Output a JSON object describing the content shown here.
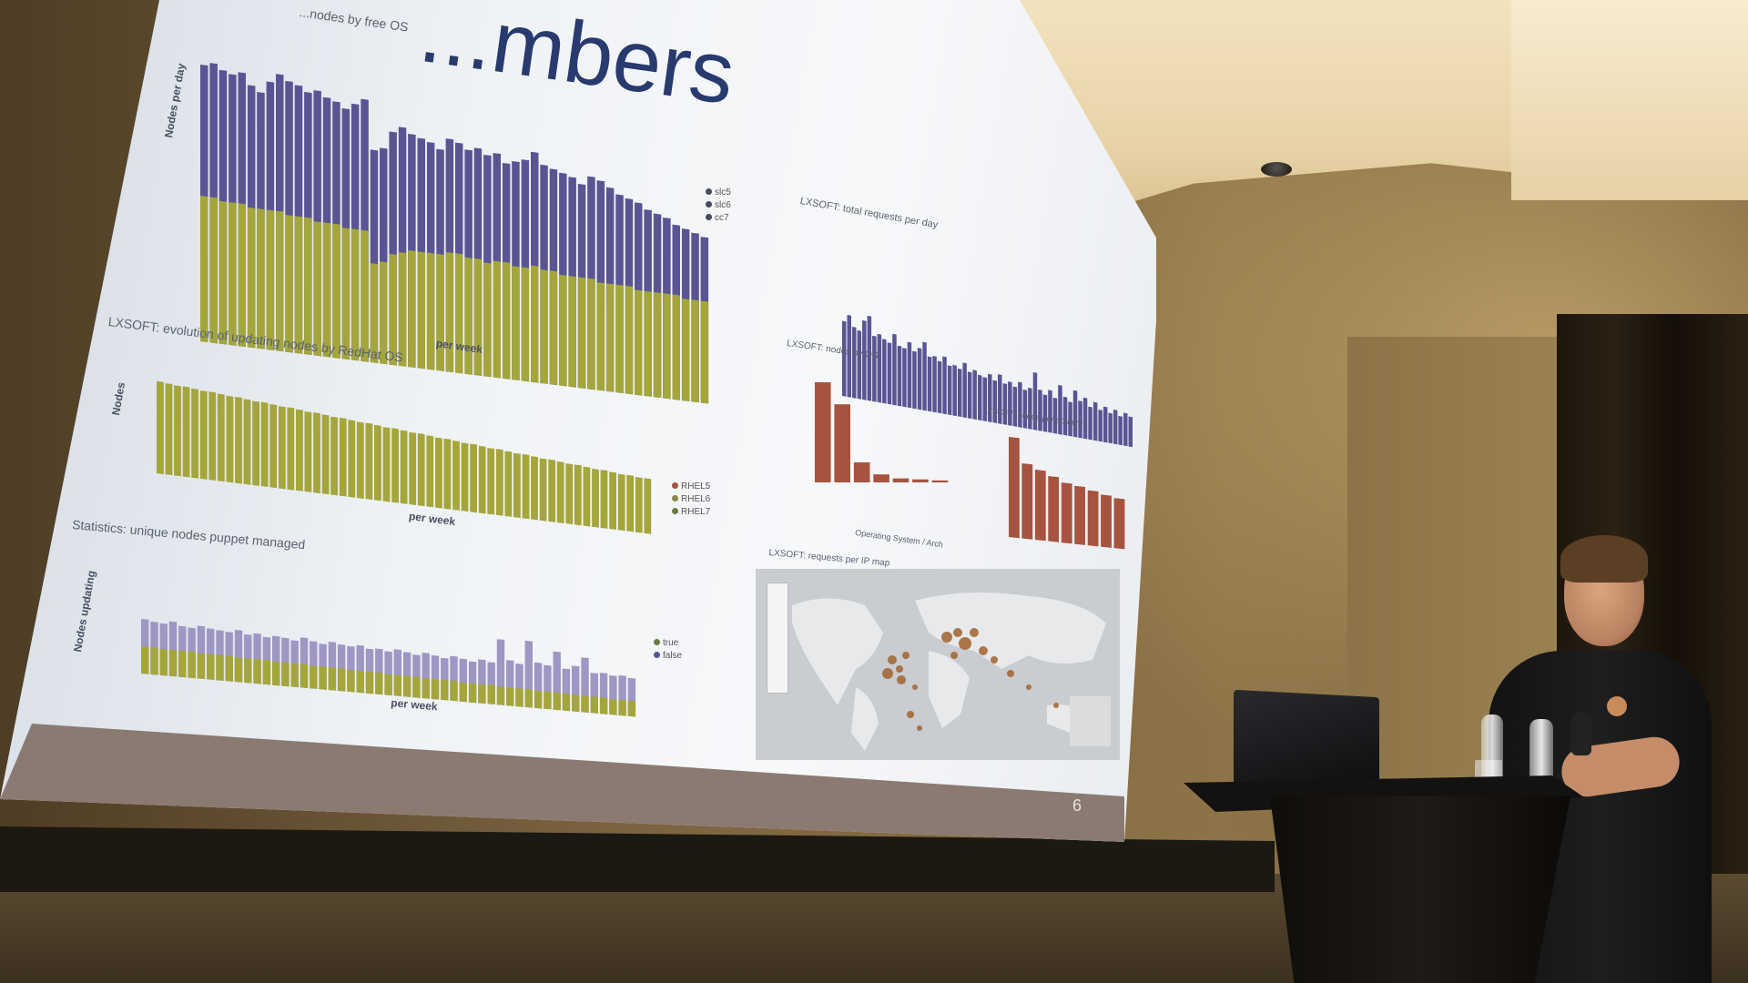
{
  "slide": {
    "title": "...mbers",
    "number": "6",
    "panels": {
      "top_left": {
        "title": "...nodes by free OS",
        "ylabel": "Nodes per day",
        "xlabel": "per week",
        "legend": [
          "slc5",
          "slc6",
          "cc7"
        ]
      },
      "top_right": {
        "title": "LXSOFT: total requests per day"
      },
      "mid_left": {
        "title": "LXSOFT: evolution of updating nodes by RedHat OS",
        "ylabel": "Nodes",
        "xlabel": "per week",
        "legend": [
          "RHEL5",
          "RHEL6",
          "RHEL7"
        ]
      },
      "mid_right_a": {
        "title": "LXSOFT: nodes by OS",
        "xlabel": "Operating System / Arch"
      },
      "mid_right_b": {
        "title": "LXSOFT: nodes per country"
      },
      "bottom_left": {
        "title": "Statistics: unique nodes puppet managed",
        "ylabel": "Nodes updating",
        "xlabel": "per week",
        "legend": [
          "true",
          "false"
        ]
      },
      "bottom_right": {
        "title": "LXSOFT: requests per IP map"
      }
    }
  },
  "colors": {
    "purple": "#5b5493",
    "olive": "#a4a63c",
    "rust": "#a6543f",
    "footer": "#8a7a72",
    "title": "#283a6e"
  },
  "series": {
    "top_left_total": [
      0.95,
      0.96,
      0.94,
      0.93,
      0.94,
      0.9,
      0.88,
      0.92,
      0.95,
      0.93,
      0.92,
      0.9,
      0.91,
      0.89,
      0.88,
      0.86,
      0.88,
      0.9,
      0.73,
      0.74,
      0.8,
      0.82,
      0.8,
      0.79,
      0.78,
      0.76,
      0.8,
      0.79,
      0.77,
      0.78,
      0.76,
      0.77,
      0.74,
      0.75,
      0.76,
      0.79,
      0.75,
      0.74,
      0.73,
      0.72,
      0.7,
      0.73,
      0.72,
      0.7,
      0.68,
      0.67,
      0.66,
      0.64,
      0.63,
      0.62,
      0.6,
      0.59,
      0.58,
      0.57
    ],
    "top_left_lower": [
      0.5,
      0.5,
      0.49,
      0.49,
      0.49,
      0.48,
      0.48,
      0.48,
      0.48,
      0.47,
      0.47,
      0.47,
      0.46,
      0.46,
      0.46,
      0.45,
      0.45,
      0.45,
      0.34,
      0.35,
      0.38,
      0.39,
      0.4,
      0.4,
      0.4,
      0.4,
      0.41,
      0.41,
      0.4,
      0.4,
      0.39,
      0.4,
      0.4,
      0.39,
      0.39,
      0.4,
      0.39,
      0.39,
      0.38,
      0.38,
      0.38,
      0.38,
      0.37,
      0.37,
      0.37,
      0.37,
      0.36,
      0.36,
      0.36,
      0.36,
      0.36,
      0.35,
      0.35,
      0.35
    ],
    "top_right": [
      0.55,
      0.6,
      0.52,
      0.5,
      0.58,
      0.62,
      0.48,
      0.5,
      0.47,
      0.45,
      0.52,
      0.44,
      0.43,
      0.48,
      0.42,
      0.45,
      0.5,
      0.4,
      0.41,
      0.38,
      0.42,
      0.36,
      0.37,
      0.35,
      0.4,
      0.34,
      0.36,
      0.33,
      0.32,
      0.35,
      0.31,
      0.36,
      0.3,
      0.32,
      0.29,
      0.33,
      0.28,
      0.3,
      0.42,
      0.3,
      0.27,
      0.31,
      0.26,
      0.36,
      0.28,
      0.25,
      0.34,
      0.27,
      0.3,
      0.24,
      0.28,
      0.23,
      0.26,
      0.22,
      0.25,
      0.21,
      0.24,
      0.22
    ],
    "mid_left": [
      0.92,
      0.91,
      0.9,
      0.9,
      0.89,
      0.88,
      0.88,
      0.87,
      0.86,
      0.86,
      0.85,
      0.84,
      0.84,
      0.83,
      0.82,
      0.82,
      0.81,
      0.8,
      0.8,
      0.79,
      0.78,
      0.78,
      0.77,
      0.76,
      0.76,
      0.75,
      0.74,
      0.74,
      0.73,
      0.72,
      0.72,
      0.71,
      0.7,
      0.7,
      0.69,
      0.68,
      0.68,
      0.67,
      0.66,
      0.66,
      0.65,
      0.64,
      0.64,
      0.63,
      0.62,
      0.62,
      0.61,
      0.6,
      0.6,
      0.59,
      0.58,
      0.58,
      0.57,
      0.56,
      0.56,
      0.55,
      0.55
    ],
    "bottom_left_total": [
      0.6,
      0.58,
      0.57,
      0.6,
      0.56,
      0.55,
      0.58,
      0.56,
      0.55,
      0.54,
      0.57,
      0.53,
      0.55,
      0.52,
      0.54,
      0.53,
      0.51,
      0.55,
      0.52,
      0.5,
      0.53,
      0.51,
      0.5,
      0.52,
      0.49,
      0.5,
      0.48,
      0.51,
      0.49,
      0.47,
      0.5,
      0.48,
      0.46,
      0.49,
      0.47,
      0.45,
      0.48,
      0.46,
      0.72,
      0.5,
      0.47,
      0.73,
      0.5,
      0.48,
      0.64,
      0.46,
      0.5,
      0.6,
      0.44,
      0.45,
      0.43,
      0.44,
      0.42
    ],
    "bottom_left_lower": [
      0.3,
      0.3,
      0.29,
      0.29,
      0.29,
      0.29,
      0.28,
      0.28,
      0.28,
      0.28,
      0.27,
      0.27,
      0.27,
      0.27,
      0.26,
      0.26,
      0.26,
      0.26,
      0.25,
      0.25,
      0.25,
      0.25,
      0.24,
      0.24,
      0.24,
      0.24,
      0.23,
      0.23,
      0.23,
      0.23,
      0.22,
      0.22,
      0.22,
      0.22,
      0.21,
      0.21,
      0.21,
      0.21,
      0.2,
      0.2,
      0.2,
      0.2,
      0.19,
      0.19,
      0.19,
      0.19,
      0.18,
      0.18,
      0.18,
      0.18,
      0.17,
      0.17,
      0.17
    ],
    "mid_right_a": [
      1.0,
      0.78,
      0.2,
      0.08,
      0.04,
      0.03,
      0.02
    ],
    "mid_right_b": [
      1.0,
      0.75,
      0.7,
      0.65,
      0.6,
      0.58,
      0.55,
      0.52,
      0.5
    ]
  }
}
